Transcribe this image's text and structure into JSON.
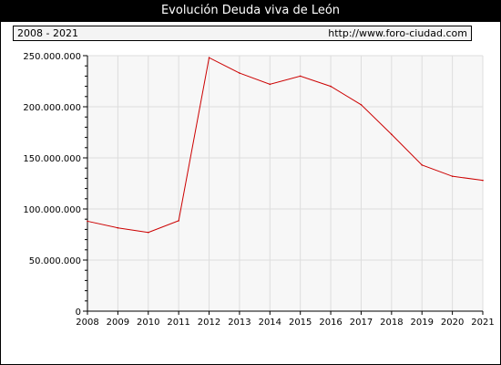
{
  "header": {
    "title": "Evolución Deuda viva de León",
    "period": "2008 - 2021",
    "source": "http://www.foro-ciudad.com"
  },
  "colors": {
    "line": "#cc0000",
    "plot_bg": "#f7f7f7",
    "grid": "#dddddd"
  },
  "chart_data": {
    "type": "line",
    "title": "Evolución Deuda viva de León",
    "xlabel": "",
    "ylabel": "",
    "x": [
      2008,
      2009,
      2010,
      2011,
      2012,
      2013,
      2014,
      2015,
      2016,
      2017,
      2018,
      2019,
      2020,
      2021
    ],
    "series": [
      {
        "values": [
          88000000,
          81500000,
          77000000,
          88500000,
          248000000,
          233000000,
          222000000,
          230000000,
          220000000,
          202000000,
          173000000,
          143000000,
          132000000,
          128000000
        ]
      }
    ],
    "ylim": [
      0,
      250000000
    ],
    "yticks": [
      0,
      50000000,
      100000000,
      150000000,
      200000000,
      250000000
    ],
    "ytick_labels": [
      "0",
      "50.000.000",
      "100.000.000",
      "150.000.000",
      "200.000.000",
      "250.000.000"
    ],
    "xtick_labels": [
      "2008",
      "2009",
      "2010",
      "2011",
      "2012",
      "2013",
      "2014",
      "2015",
      "2016",
      "2017",
      "2018",
      "2019",
      "2020",
      "2021"
    ],
    "grid": true
  }
}
